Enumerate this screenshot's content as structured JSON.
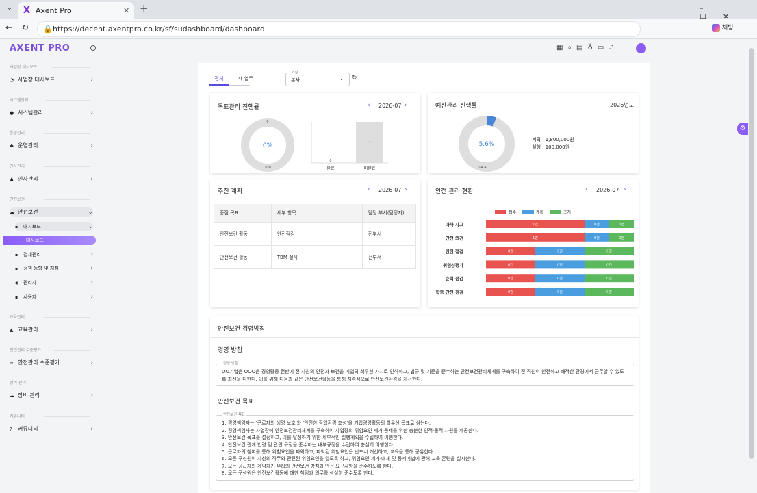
{
  "browser": {
    "tab_title": "Axent Pro",
    "url": "https://decent.axentpro.co.kr/sf/sudashboard/dashboard",
    "chat_button": "채팅"
  },
  "sidebar": {
    "logo": "AXENT PRO",
    "groups": [
      {
        "label": "사업장 대시보드",
        "item": "사업장 대시보드"
      },
      {
        "label": "시스템관리",
        "item": "시스템관리"
      },
      {
        "label": "운영관리",
        "item": "운영관리"
      },
      {
        "label": "인사관리",
        "item": "인사관리"
      },
      {
        "label": "안전보건",
        "item": "안전보건",
        "children": [
          "대시보드",
          "대시보드",
          "결재관리",
          "정책 동향 및 지침",
          "관리자",
          "사용자"
        ]
      },
      {
        "label": "교육관리",
        "item": "교육관리"
      },
      {
        "label": "안전관리 수준평가",
        "item": "안전관리 수준평가"
      },
      {
        "label": "장비 관리",
        "item": "장비 관리"
      },
      {
        "label": "커뮤니티",
        "item": "커뮤니티"
      }
    ]
  },
  "filters": {
    "tabs": [
      "전체",
      "내 업무"
    ],
    "site_legend": "거점",
    "site_value": "본사"
  },
  "goal_card": {
    "title": "목표관리 진행률",
    "month": "2026-07",
    "donut": {
      "values": [
        0,
        100
      ],
      "center_label": "0%",
      "colors": [
        "#4a86d8",
        "#dedede"
      ]
    },
    "bars": {
      "type": "bar",
      "categories": [
        "완료",
        "미완료"
      ],
      "values": [
        0,
        2
      ],
      "ylim": [
        0,
        2
      ],
      "color": "#dedede"
    }
  },
  "budget_card": {
    "title": "예산관리 진행률",
    "year": "2026년도",
    "donut": {
      "values": [
        5.6,
        94.4
      ],
      "center_label": "5.6%",
      "colors": [
        "#4a86d8",
        "#dedede"
      ]
    },
    "legend": [
      "계획 : 1,800,000원",
      "실행 : 100,000원"
    ]
  },
  "plan_card": {
    "title": "추진 계획",
    "month": "2026-07",
    "table": {
      "headers": [
        "중점 목표",
        "세부 항목",
        "담당 부서(담당자)"
      ],
      "rows": [
        [
          "안전보건 활동",
          "안전점검",
          "전부서"
        ],
        [
          "안전보건 활동",
          "TBM 실시",
          "전부서"
        ]
      ]
    }
  },
  "safety_card": {
    "title": "안전 관리 현황",
    "month": "2026-07",
    "chart_data": {
      "type": "stacked-barh",
      "categories": [
        "아차 사고",
        "안전 의견",
        "안전 점검",
        "위험성평가",
        "순회 점검",
        "합동 안전 점검"
      ],
      "series": [
        {
          "name": "접수",
          "color": "#e8534f",
          "values": [
            1,
            1,
            0,
            0,
            0,
            0
          ],
          "value_labels": [
            "1건",
            "1건",
            "0건",
            "0건",
            "0건",
            "0건"
          ]
        },
        {
          "name": "계획",
          "color": "#4a9ee0",
          "values": [
            0,
            0,
            0,
            0,
            0,
            0
          ],
          "value_labels": [
            "0건",
            "0건",
            "0건",
            "0건",
            "0건",
            "0건"
          ]
        },
        {
          "name": "조치",
          "color": "#5cb85c",
          "values": [
            0,
            0,
            0,
            0,
            0,
            0
          ],
          "value_labels": [
            "0건",
            "0건",
            "0건",
            "0건",
            "0건",
            "0건"
          ]
        }
      ],
      "legend": "top"
    }
  },
  "policy_card": {
    "title": "안전보건 경영방침",
    "policy_heading": "경영 방침",
    "policy_legend": "경영 방침",
    "policy_text": "OO기업은 OOO은 경영활동 전반에 전 사원의 안전과 보건을 기업의 최우선 가치로 인식하고, 법규 및 기준을 준수하는 안전보건관리체계를 구축하여 전 직원이 안전하고 쾌적한 환경에서 근무할 수 있도록 최선을 다한다. 이를 위해 다음과 같은 안전보건활동을 통해 지속적으로 안전보건환경을 개선한다.",
    "goals_heading": "안전보건 목표",
    "goals_legend": "안전보건 목표",
    "goals": [
      "1. 경영책임자는 '근로자의 생명 보호'와 '안전한 작업환경 조성'을 기업경영활동의 최우선 목표로 삼는다.",
      "2. 경영책임자는 사업장에 안전보건관리체계를 구축하여 사업장의 위험요인 제거·통제를 위한 충분한 인적·물적 자원을 제공한다.",
      "3. 안전보건 목표를 설정하고, 이를 달성하기 위한 세부적인 실행계획을 수립하여 이행한다.",
      "4. 안전보건 관계 법령 및 관련 규정을 준수하는 내부규정을 수립하여 충실히 이행한다.",
      "5. 근로자의 참여를 통해 위험요인을 파악하고, 파악된 위험요인은 반드시 개선하고, 교육을 통해 공유한다.",
      "6. 모든 구성원이 자신의 직무와 관련된 위험요인을 알도록 하고, 위험요인 제거·대체 및 통제기법에 관해 교육·훈련을 실시한다.",
      "7. 모든 공급자와 계약자가 우리의 안전보건 방침과 안전 요구사항을 준수하도록 한다.",
      "8. 모든 구성원은 안전보건활동에 대한 책임과 의무를 성실히 준수토록 한다."
    ]
  }
}
